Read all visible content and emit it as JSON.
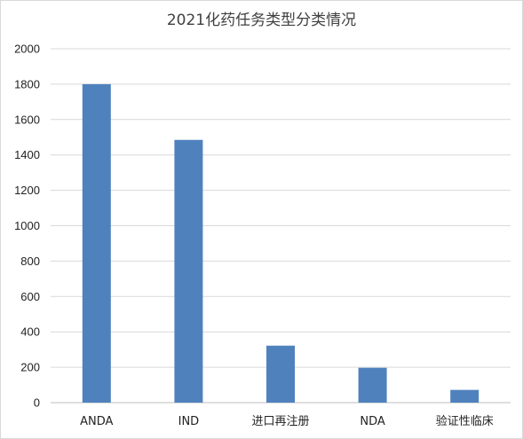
{
  "chart_data": {
    "type": "bar",
    "title": "2021化药任务类型分类情况",
    "xlabel": "",
    "ylabel": "",
    "categories": [
      "ANDA",
      "IND",
      "进口再注册",
      "NDA",
      "验证性临床"
    ],
    "values": [
      1800,
      1485,
      322,
      197,
      72
    ],
    "ylim": [
      0,
      2000
    ],
    "yticks": [
      0,
      200,
      400,
      600,
      800,
      1000,
      1200,
      1400,
      1600,
      1800,
      2000
    ],
    "grid": true,
    "legend": "none",
    "bar_color": "#4f81bd"
  }
}
